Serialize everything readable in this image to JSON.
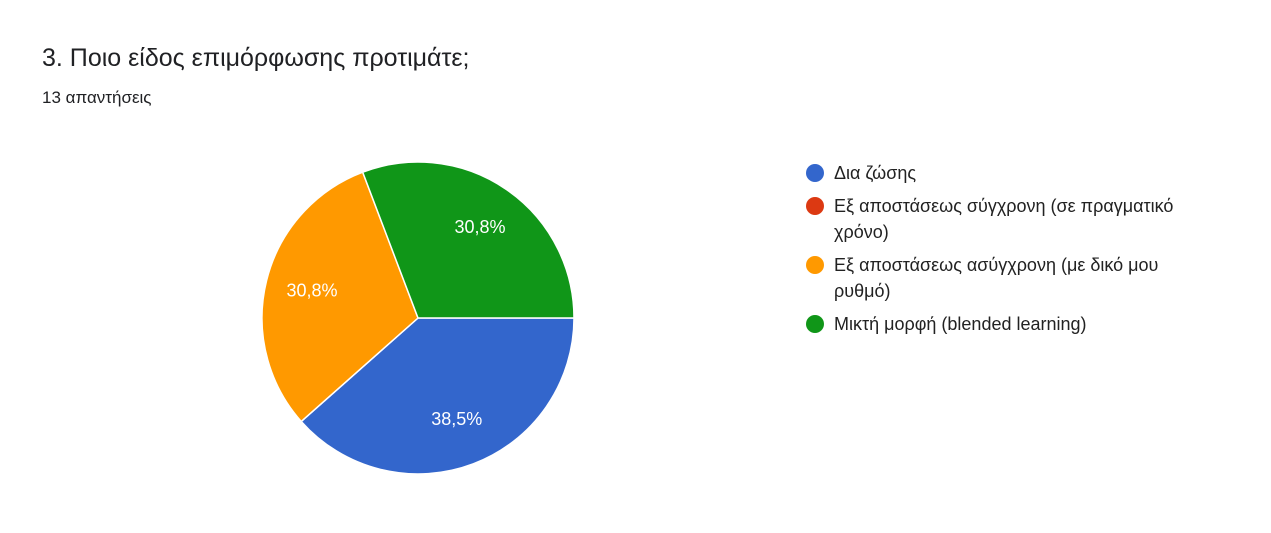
{
  "chart_data": {
    "type": "pie",
    "title": "3. Ποιο είδος επιμόρφωσης προτιμάτε;",
    "subtitle": "13 απαντήσεις",
    "categories": [
      "Δια ζώσης",
      "Εξ αποστάσεως σύγχρονη (σε πραγματικό χρόνο)",
      "Εξ αποστάσεως ασύγχρονη (με δικό μου ρυθμό)",
      "Μικτή μορφή (blended learning)"
    ],
    "values": [
      38.5,
      0,
      30.8,
      30.8
    ],
    "value_labels": [
      "38,5%",
      null,
      "30,8%",
      "30,8%"
    ],
    "colors": [
      "#3366cc",
      "#dc3912",
      "#ff9900",
      "#109618"
    ],
    "legend": "right"
  }
}
